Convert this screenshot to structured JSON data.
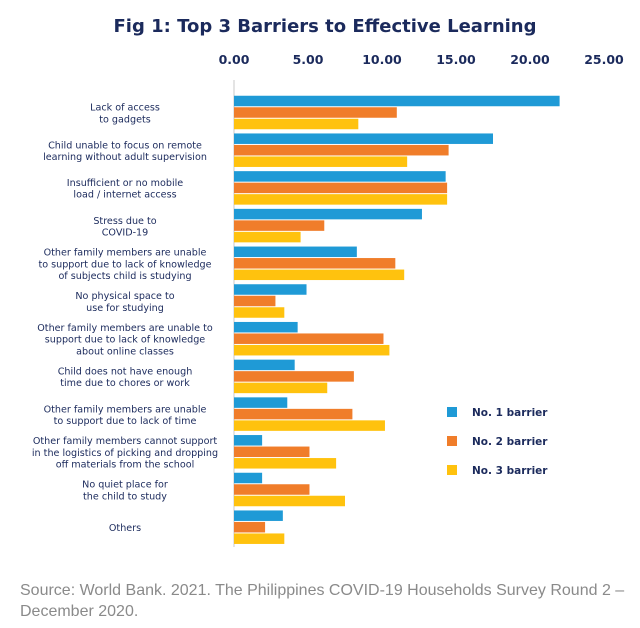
{
  "chart_data": {
    "type": "bar",
    "orientation": "horizontal",
    "title": "Fig 1: Top 3 Barriers to Effective Learning",
    "xlim": [
      0,
      25
    ],
    "xticks": [
      "0.00",
      "5.00",
      "10.00",
      "15.00",
      "20.00",
      "25.00"
    ],
    "tick_values": [
      0,
      5,
      10,
      15,
      20,
      25
    ],
    "axis_position": "top",
    "grid": false,
    "legend_position": "right",
    "categories": [
      [
        "Lack of access",
        "to gadgets"
      ],
      [
        "Child unable to focus on remote",
        "learning without adult supervision"
      ],
      [
        "Insufficient or no mobile",
        "load / internet access"
      ],
      [
        "Stress due to",
        "COVID-19"
      ],
      [
        "Other family members are unable",
        "to support due to lack of knowledge",
        "of subjects child is studying"
      ],
      [
        "No physical space to",
        "use for studying"
      ],
      [
        "Other family members are unable to",
        "support due to lack of knowledge",
        "about online classes"
      ],
      [
        "Child does not have enough",
        "time due to chores or work"
      ],
      [
        "Other family members are unable",
        "to support due to lack of time"
      ],
      [
        "Other family members cannot support",
        "in the logistics of picking and dropping",
        "off materials from the school"
      ],
      [
        "No quiet place for",
        "the child to study"
      ],
      [
        "Others"
      ]
    ],
    "series": [
      {
        "name": "No. 1 barrier",
        "color": "#1f9ad6",
        "values": [
          22.0,
          17.5,
          14.3,
          12.7,
          8.3,
          4.9,
          4.3,
          4.1,
          3.6,
          1.9,
          1.9,
          3.3
        ]
      },
      {
        "name": "No. 2 barrier",
        "color": "#f07d2a",
        "values": [
          11.0,
          14.5,
          14.4,
          6.1,
          10.9,
          2.8,
          10.1,
          8.1,
          8.0,
          5.1,
          5.1,
          2.1
        ]
      },
      {
        "name": "No. 3 barrier",
        "color": "#ffc20e",
        "values": [
          8.4,
          11.7,
          14.4,
          4.5,
          11.5,
          3.4,
          10.5,
          6.3,
          10.2,
          6.9,
          7.5,
          3.4
        ]
      }
    ]
  },
  "source": "Source: World Bank. 2021. The Philippines COVID-19 Households Survey Round 2 – December 2020."
}
